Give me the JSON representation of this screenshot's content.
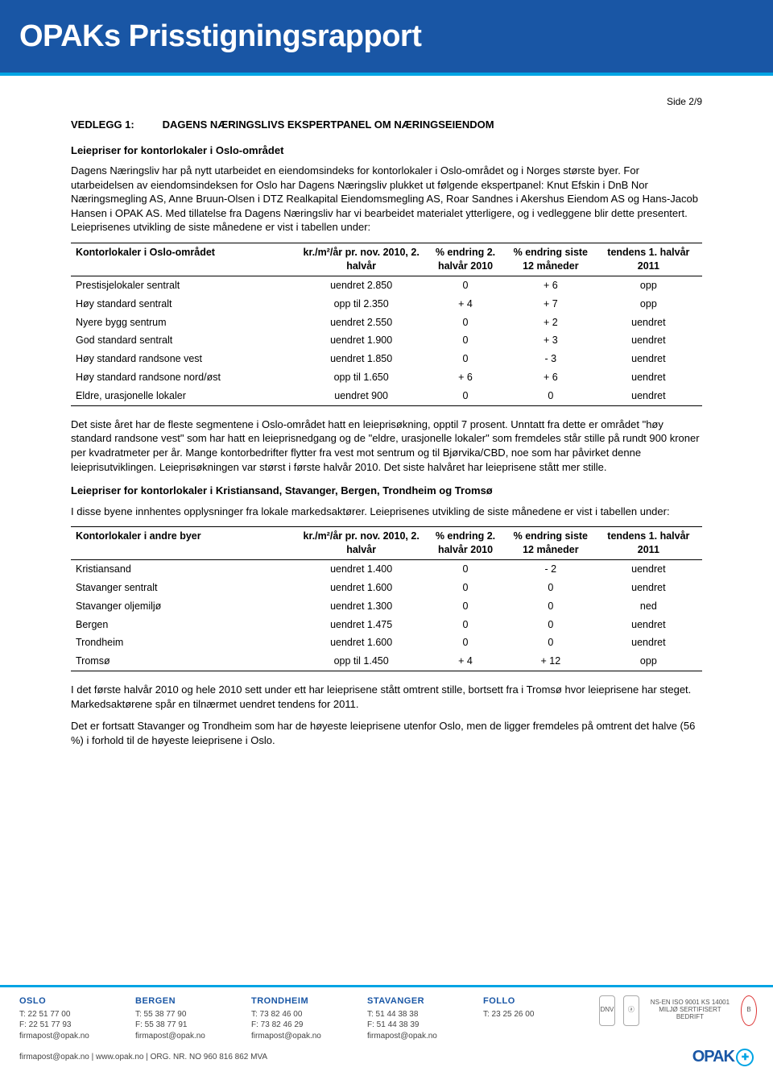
{
  "header": {
    "title": "OPAKs Prisstigningsrapport"
  },
  "pageNumber": "Side 2/9",
  "vedlegg": {
    "label": "VEDLEGG 1:",
    "title": "DAGENS NÆRINGSLIVS EKSPERTPANEL OM NÆRINGSEIENDOM"
  },
  "section1": {
    "heading": "Leiepriser for kontorlokaler i Oslo-området",
    "para": "Dagens Næringsliv har på nytt utarbeidet en eiendomsindeks for kontorlokaler i Oslo-området og i Norges største byer. For utarbeidelsen av eiendomsindeksen for Oslo har Dagens Næringsliv plukket ut følgende ekspertpanel: Knut Efskin i DnB Nor Næringsmegling AS, Anne Bruun-Olsen i DTZ Realkapital Eiendomsmegling AS, Roar Sandnes i Akershus Eiendom AS og Hans-Jacob Hansen i OPAK AS. Med tillatelse fra Dagens Næringsliv har vi bearbeidet materialet ytterligere, og i vedleggene blir dette presentert. Leieprisenes utvikling de siste månedene er vist i tabellen under:"
  },
  "table1": {
    "columns": [
      "Kontorlokaler i Oslo-området",
      "kr./m²/år pr. nov. 2010, 2. halvår",
      "% endring 2. halvår 2010",
      "% endring siste 12 måneder",
      "tendens 1. halvår 2011"
    ],
    "rows": [
      [
        "Prestisjelokaler sentralt",
        "uendret 2.850",
        "0",
        "+ 6",
        "opp"
      ],
      [
        "Høy standard sentralt",
        "opp til 2.350",
        "+ 4",
        "+ 7",
        "opp"
      ],
      [
        "Nyere bygg sentrum",
        "uendret 2.550",
        "0",
        "+ 2",
        "uendret"
      ],
      [
        "God standard sentralt",
        "uendret 1.900",
        "0",
        "+ 3",
        "uendret"
      ],
      [
        "Høy standard randsone vest",
        "uendret 1.850",
        "0",
        "- 3",
        "uendret"
      ],
      [
        "Høy standard randsone nord/øst",
        "opp til 1.650",
        "+ 6",
        "+ 6",
        "uendret"
      ],
      [
        "Eldre, urasjonelle lokaler",
        "uendret 900",
        "0",
        "0",
        "uendret"
      ]
    ]
  },
  "para2": "Det siste året har de fleste segmentene i Oslo-området hatt en leieprisøkning, opptil 7 prosent. Unntatt fra dette er området \"høy standard randsone vest\" som har hatt en leieprisnedgang og de \"eldre, urasjonelle lokaler\" som fremdeles står stille på rundt 900 kroner per kvadratmeter per år. Mange kontorbedrifter flytter fra vest mot sentrum og til Bjørvika/CBD, noe som har påvirket denne leieprisutviklingen. Leieprisøkningen var størst i første halvår 2010. Det siste halvåret har leieprisene stått mer stille.",
  "section2": {
    "heading": "Leiepriser for kontorlokaler i Kristiansand, Stavanger, Bergen, Trondheim og Tromsø",
    "intro": "I disse byene innhentes opplysninger fra lokale markedsaktører. Leieprisenes utvikling de siste månedene er vist i tabellen under:"
  },
  "table2": {
    "columns": [
      "Kontorlokaler i andre byer",
      "kr./m²/år pr. nov. 2010, 2. halvår",
      "% endring 2. halvår 2010",
      "% endring siste 12 måneder",
      "tendens 1. halvår 2011"
    ],
    "rows": [
      [
        "Kristiansand",
        "uendret 1.400",
        "0",
        "- 2",
        "uendret"
      ],
      [
        "Stavanger sentralt",
        "uendret 1.600",
        "0",
        "0",
        "uendret"
      ],
      [
        "Stavanger oljemiljø",
        "uendret 1.300",
        "0",
        "0",
        "ned"
      ],
      [
        "Bergen",
        "uendret 1.475",
        "0",
        "0",
        "uendret"
      ],
      [
        "Trondheim",
        "uendret 1.600",
        "0",
        "0",
        "uendret"
      ],
      [
        "Tromsø",
        "opp til 1.450",
        "+ 4",
        "+ 12",
        "opp"
      ]
    ]
  },
  "para3": "I det første halvår 2010 og hele 2010 sett under ett har leieprisene stått omtrent stille, bortsett fra i Tromsø hvor leieprisene har steget. Markedsaktørene spår en tilnærmet uendret tendens for 2011.",
  "para4": "Det er fortsatt Stavanger og Trondheim som har de høyeste leieprisene utenfor Oslo, men de ligger fremdeles på omtrent det halve (56 %) i forhold til de høyeste leieprisene i Oslo.",
  "footer": {
    "offices": [
      {
        "city": "OSLO",
        "tel": "T: 22 51 77 00",
        "fax": "F: 22 51 77 93",
        "email": "firmapost@opak.no"
      },
      {
        "city": "BERGEN",
        "tel": "T: 55 38 77 90",
        "fax": "F: 55 38 77 91",
        "email": "firmapost@opak.no"
      },
      {
        "city": "TRONDHEIM",
        "tel": "T: 73 82 46 00",
        "fax": "F: 73 82 46 29",
        "email": "firmapost@opak.no"
      },
      {
        "city": "STAVANGER",
        "tel": "T: 51 44 38 38",
        "fax": "F: 51 44 38 39",
        "email": "firmapost@opak.no"
      },
      {
        "city": "FOLLO",
        "tel": "T: 23 25 26 00",
        "fax": "",
        "email": ""
      }
    ],
    "cert1": "NS-EN ISO 9001 KS 14001 MILJØ SERTIFISERT BEDRIFT",
    "bottom_left": "firmapost@opak.no  |  www.opak.no  |  ORG. NR. NO 960 816 862 MVA",
    "logo": "OPAK"
  }
}
